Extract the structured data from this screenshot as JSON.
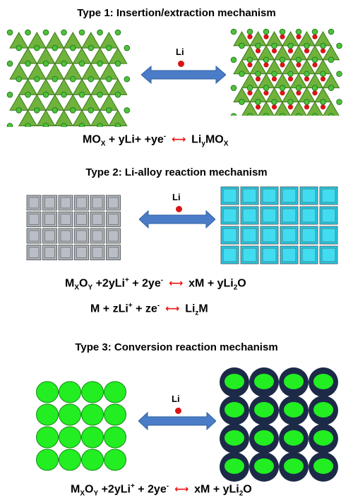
{
  "type1": {
    "title": "Type 1: Insertion/extraction mechanism",
    "li_label": "Li",
    "equation": {
      "reactant": "MO",
      "reactant_sub": "X",
      "middle": " + yLi+ +ye",
      "middle_sup": "-",
      "product_a": "Li",
      "product_sub1": "y",
      "product_b": "MO",
      "product_sub2": "X"
    }
  },
  "type2": {
    "title": "Type 2: Li-alloy reaction mechanism",
    "li_label": "Li",
    "equation1": {
      "m": "M",
      "x": "X",
      "o": "O",
      "y": "Y",
      "li": " +2yLi",
      "plus": "+",
      "e": " + 2ye",
      "minus": "-",
      "p1": "xM + yLi",
      "two": "2",
      "p2": "O"
    },
    "equation2": {
      "a": "M + zLi",
      "plus": "+",
      "b": " + ze",
      "minus": "-",
      "c": "Li",
      "z": "z",
      "d": "M"
    }
  },
  "type3": {
    "title": "Type 3: Conversion reaction mechanism",
    "li_label": "Li",
    "equation": {
      "m": "M",
      "x": "X",
      "o": "O",
      "y": "Y",
      "li": " +2yLi",
      "plus": "+",
      "e": " + 2ye",
      "minus": "-",
      "p1": "xM + yLi",
      "two": "2",
      "p2": "O"
    }
  },
  "colors": {
    "triangle": "#6fb23c",
    "node": "#4cc23a",
    "li_ion": "#d81515",
    "arrow": "#4a7cc8",
    "gray_tile": "#aeb4bd",
    "cyan_tile": "#22d0ea",
    "green_circle": "#22ee22",
    "navy": "#1c2a48"
  }
}
